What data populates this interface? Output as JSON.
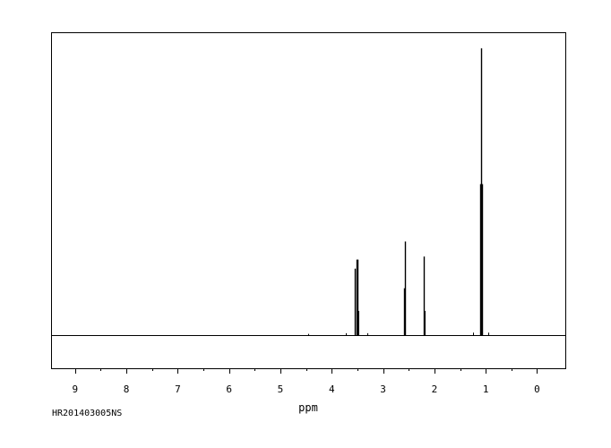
{
  "sample_id": "HR201403005NS",
  "chart_data": {
    "type": "line",
    "title": "",
    "xlabel": "ppm",
    "ylabel": "",
    "x_reversed": true,
    "xlim": [
      9.45,
      -0.55
    ],
    "ylim": [
      -0.11,
      1.0
    ],
    "grid": false,
    "legend": "none",
    "x_ticks": [
      "9",
      "8",
      "7",
      "6",
      "5",
      "4",
      "3",
      "2",
      "1",
      "0"
    ],
    "x_tick_values": [
      9,
      8,
      7,
      6,
      5,
      4,
      3,
      2,
      1,
      0
    ],
    "baseline": 0,
    "peaks": [
      {
        "ppm": 3.545,
        "height": 0.22
      },
      {
        "ppm": 3.525,
        "height": 0.25
      },
      {
        "ppm": 3.505,
        "height": 0.25
      },
      {
        "ppm": 3.485,
        "height": 0.08
      },
      {
        "ppm": 2.59,
        "height": 0.155
      },
      {
        "ppm": 2.575,
        "height": 0.31
      },
      {
        "ppm": 2.2,
        "height": 0.26
      },
      {
        "ppm": 2.185,
        "height": 0.08
      },
      {
        "ppm": 1.1,
        "height": 0.5
      },
      {
        "ppm": 1.085,
        "height": 0.95
      },
      {
        "ppm": 1.07,
        "height": 0.5
      },
      {
        "ppm": 4.45,
        "height": 0.004
      },
      {
        "ppm": 3.72,
        "height": 0.006
      },
      {
        "ppm": 3.3,
        "height": 0.006
      },
      {
        "ppm": 1.25,
        "height": 0.008
      },
      {
        "ppm": 0.95,
        "height": 0.008
      }
    ]
  }
}
